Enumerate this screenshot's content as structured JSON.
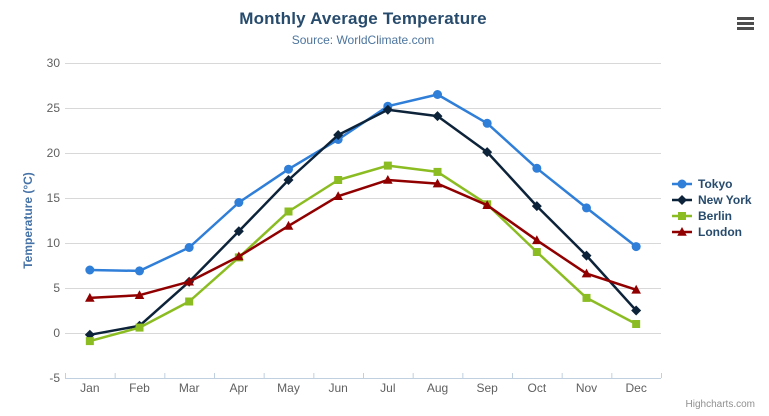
{
  "chart": {
    "title": "Monthly Average Temperature",
    "subtitle": "Source: WorldClimate.com",
    "credits_label": "Highcharts.com",
    "export_menu": "context-menu"
  },
  "chart_data": {
    "type": "line",
    "title": "Monthly Average Temperature",
    "subtitle": "Source: WorldClimate.com",
    "categories": [
      "Jan",
      "Feb",
      "Mar",
      "Apr",
      "May",
      "Jun",
      "Jul",
      "Aug",
      "Sep",
      "Oct",
      "Nov",
      "Dec"
    ],
    "series": [
      {
        "name": "Tokyo",
        "color": "#2f7ed8",
        "marker": "circle",
        "values": [
          7.0,
          6.9,
          9.5,
          14.5,
          18.2,
          21.5,
          25.2,
          26.5,
          23.3,
          18.3,
          13.9,
          9.6
        ]
      },
      {
        "name": "New York",
        "color": "#0d233a",
        "marker": "diamond",
        "values": [
          -0.2,
          0.8,
          5.7,
          11.3,
          17.0,
          22.0,
          24.8,
          24.1,
          20.1,
          14.1,
          8.6,
          2.5
        ]
      },
      {
        "name": "Berlin",
        "color": "#8bbc21",
        "marker": "square",
        "values": [
          -0.9,
          0.6,
          3.5,
          8.4,
          13.5,
          17.0,
          18.6,
          17.9,
          14.3,
          9.0,
          3.9,
          1.0
        ]
      },
      {
        "name": "London",
        "color": "#910000",
        "marker": "triangle",
        "values": [
          3.9,
          4.2,
          5.7,
          8.5,
          11.9,
          15.2,
          17.0,
          16.6,
          14.2,
          10.3,
          6.6,
          4.8
        ]
      }
    ],
    "xlabel": "",
    "ylabel": "Temperature (°C)",
    "ylim": [
      -5,
      30
    ],
    "yticks": [
      -5,
      0,
      5,
      10,
      15,
      20,
      25,
      30
    ],
    "grid": true,
    "legend_position": "right",
    "colors": {
      "title": "#274b6d",
      "subtitle": "#4d759e",
      "axis_labels": "#606060",
      "yaxis_title": "#4572a7",
      "gridline": "#d8d8d8",
      "axis_line": "#c0d0e0",
      "legend_text": "#274b6d",
      "credits": "#909090",
      "background": "#ffffff"
    }
  }
}
